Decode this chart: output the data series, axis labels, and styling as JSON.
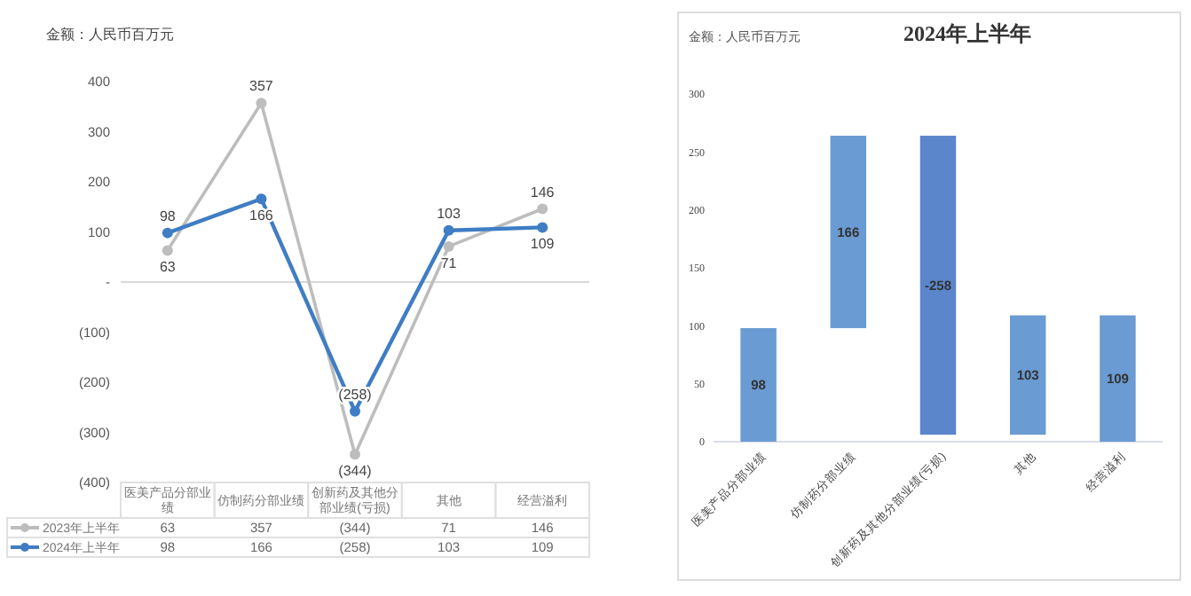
{
  "chart_data": [
    {
      "type": "line",
      "annotations": [
        "金额：人民币百万元"
      ],
      "categories": [
        "医美产品分部业绩",
        "仿制药分部业绩",
        "创新药及其他分部业绩(亏损)",
        "其他",
        "经营溢利"
      ],
      "series": [
        {
          "name": "2023年上半年",
          "color": "#bdbdbd",
          "values": [
            63,
            357,
            -344,
            71,
            146
          ],
          "value_labels": [
            "63",
            "357",
            "(344)",
            "71",
            "146"
          ]
        },
        {
          "name": "2024年上半年",
          "color": "#3f7dc4",
          "values": [
            98,
            166,
            -258,
            103,
            109
          ],
          "value_labels": [
            "98",
            "166",
            "(258)",
            "103",
            "109"
          ]
        }
      ],
      "ylim": [
        -400,
        400
      ],
      "yticks": [
        400,
        300,
        200,
        100,
        {
          "value": 0,
          "label": "-"
        },
        {
          "value": -100,
          "label": "(100)"
        },
        {
          "value": -200,
          "label": "(200)"
        },
        {
          "value": -300,
          "label": "(300)"
        },
        {
          "value": -400,
          "label": "(400)"
        }
      ],
      "marker": "circle",
      "legend": "bottom"
    },
    {
      "type": "bar",
      "title": "2024年上半年",
      "annotations": [
        "金额：人民币百万元"
      ],
      "categories": [
        "医美产品分部业绩",
        "仿制药分部业绩",
        "创新药及其他分部业绩(亏损)",
        "其他",
        "经营溢利"
      ],
      "values": [
        98,
        166,
        -258,
        103,
        109
      ],
      "base": [
        0,
        98,
        264,
        6,
        0
      ],
      "colors": [
        "#6a9bd3",
        "#6a9bd3",
        "#5b86cc",
        "#6a9bd3",
        "#6a9bd3"
      ],
      "ylim": [
        0,
        300
      ],
      "yticks": [
        0,
        50,
        100,
        150,
        200,
        250,
        300
      ],
      "data_labels": true
    }
  ]
}
